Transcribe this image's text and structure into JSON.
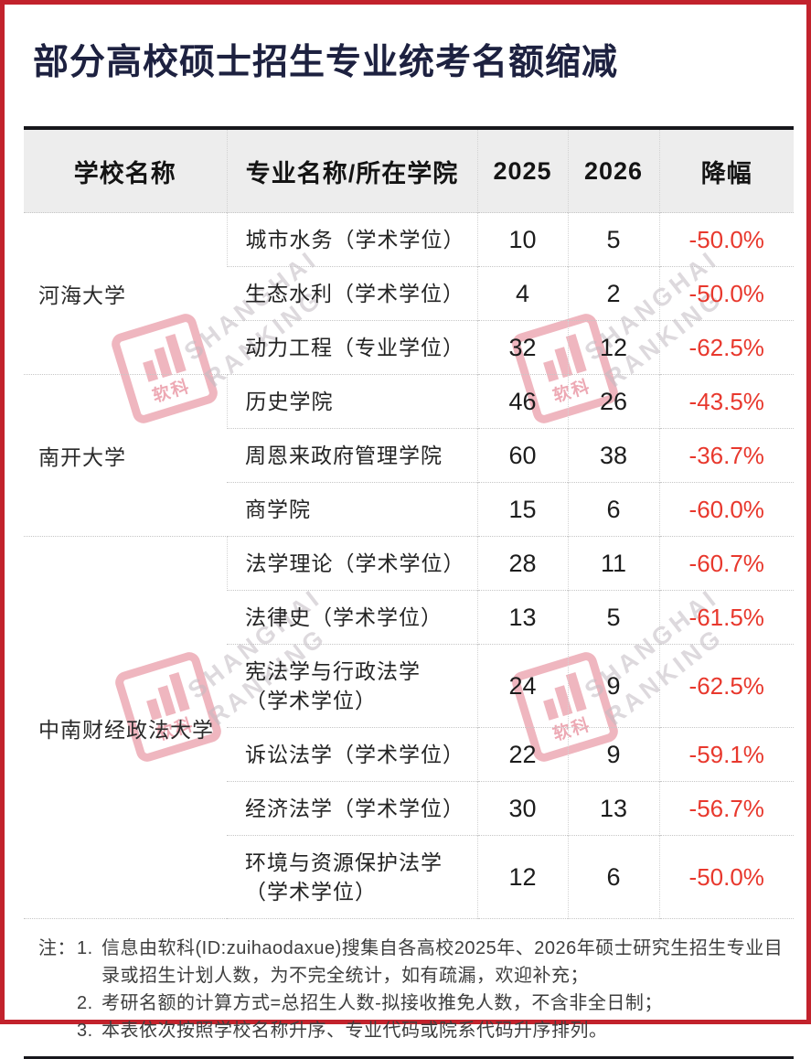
{
  "title": "部分高校硕士招生专业统考名额缩减",
  "colors": {
    "frame_red": "#c2222c",
    "title_navy": "#1d2140",
    "drop_red": "#e8382d",
    "header_bg": "#ededed",
    "rule_black": "#17171c"
  },
  "watermark": {
    "logo_cn": "软科",
    "brand_line1": "SHANGHAI",
    "brand_line2": "RANKING"
  },
  "chart_data": {
    "type": "table",
    "title": "部分高校硕士招生专业统考名额缩减",
    "columns": [
      "学校名称",
      "专业名称/所在学院",
      "2025",
      "2026",
      "降幅"
    ],
    "groups": [
      {
        "school": "河海大学",
        "rows": [
          {
            "major": "城市水务（学术学位）",
            "y2025": 10,
            "y2026": 5,
            "drop": "-50.0%"
          },
          {
            "major": "生态水利（学术学位）",
            "y2025": 4,
            "y2026": 2,
            "drop": "-50.0%"
          },
          {
            "major": "动力工程（专业学位）",
            "y2025": 32,
            "y2026": 12,
            "drop": "-62.5%"
          }
        ]
      },
      {
        "school": "南开大学",
        "rows": [
          {
            "major": "历史学院",
            "y2025": 46,
            "y2026": 26,
            "drop": "-43.5%"
          },
          {
            "major": "周恩来政府管理学院",
            "y2025": 60,
            "y2026": 38,
            "drop": "-36.7%"
          },
          {
            "major": "商学院",
            "y2025": 15,
            "y2026": 6,
            "drop": "-60.0%"
          }
        ]
      },
      {
        "school": "中南财经政法大学",
        "rows": [
          {
            "major": "法学理论（学术学位）",
            "y2025": 28,
            "y2026": 11,
            "drop": "-60.7%"
          },
          {
            "major": "法律史（学术学位）",
            "y2025": 13,
            "y2026": 5,
            "drop": "-61.5%"
          },
          {
            "major": "宪法学与行政法学",
            "major2": "（学术学位）",
            "y2025": 24,
            "y2026": 9,
            "drop": "-62.5%"
          },
          {
            "major": "诉讼法学（学术学位）",
            "y2025": 22,
            "y2026": 9,
            "drop": "-59.1%"
          },
          {
            "major": "经济法学（学术学位）",
            "y2025": 30,
            "y2026": 13,
            "drop": "-56.7%"
          },
          {
            "major": "环境与资源保护法学",
            "major2": "（学术学位）",
            "y2025": 12,
            "y2026": 6,
            "drop": "-50.0%"
          }
        ]
      }
    ]
  },
  "notes": {
    "prefix": "注：",
    "items": [
      {
        "num": "1.",
        "text": "信息由软科(ID:zuihaodaxue)搜集自各高校2025年、2026年硕士研究生招生专业目录或招生计划人数，为不完全统计，如有疏漏，欢迎补充；"
      },
      {
        "num": "2.",
        "text": "考研名额的计算方式=总招生人数-拟接收推免人数，不含非全日制；"
      },
      {
        "num": "3.",
        "text": "本表依次按照学校名称升序、专业代码或院系代码升序排列。"
      }
    ]
  }
}
